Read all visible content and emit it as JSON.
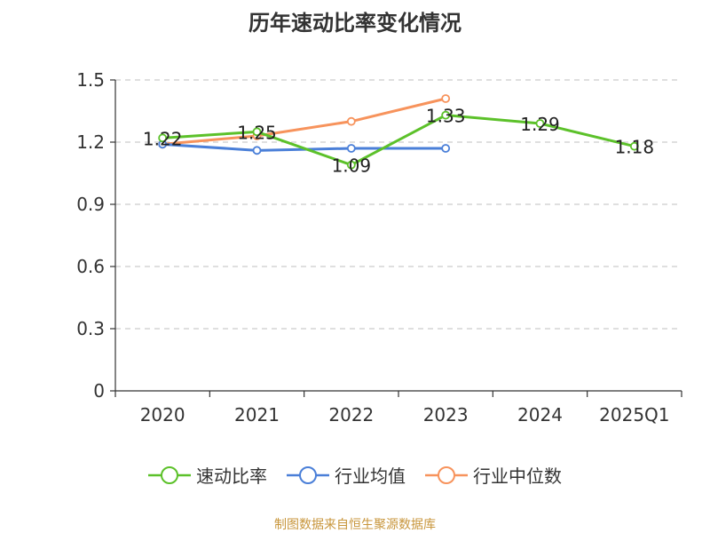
{
  "title": "历年速动比率变化情况",
  "source": "制图数据来自恒生聚源数据库",
  "chart_data": {
    "type": "line",
    "title": "历年速动比率变化情况",
    "categories": [
      "2020",
      "2021",
      "2022",
      "2023",
      "2024",
      "2025Q1"
    ],
    "ylim": [
      0,
      1.5
    ],
    "yticks": [
      "0",
      "0.3",
      "0.6",
      "0.9",
      "1.2",
      "1.5"
    ],
    "grid": true,
    "legend_position": "bottom",
    "series": [
      {
        "name": "速动比率",
        "color": "#5cc12a",
        "values": [
          1.22,
          1.25,
          1.09,
          1.33,
          1.29,
          1.18
        ],
        "labels": [
          "1.22",
          "1.25",
          "1.09",
          "1.33",
          "1.29",
          "1.18"
        ]
      },
      {
        "name": "行业均值",
        "color": "#4a7fd8",
        "values": [
          1.19,
          1.16,
          1.17,
          1.17,
          null,
          null
        ]
      },
      {
        "name": "行业中位数",
        "color": "#f7935c",
        "values": [
          1.19,
          1.23,
          1.3,
          1.41,
          null,
          null
        ]
      }
    ]
  }
}
